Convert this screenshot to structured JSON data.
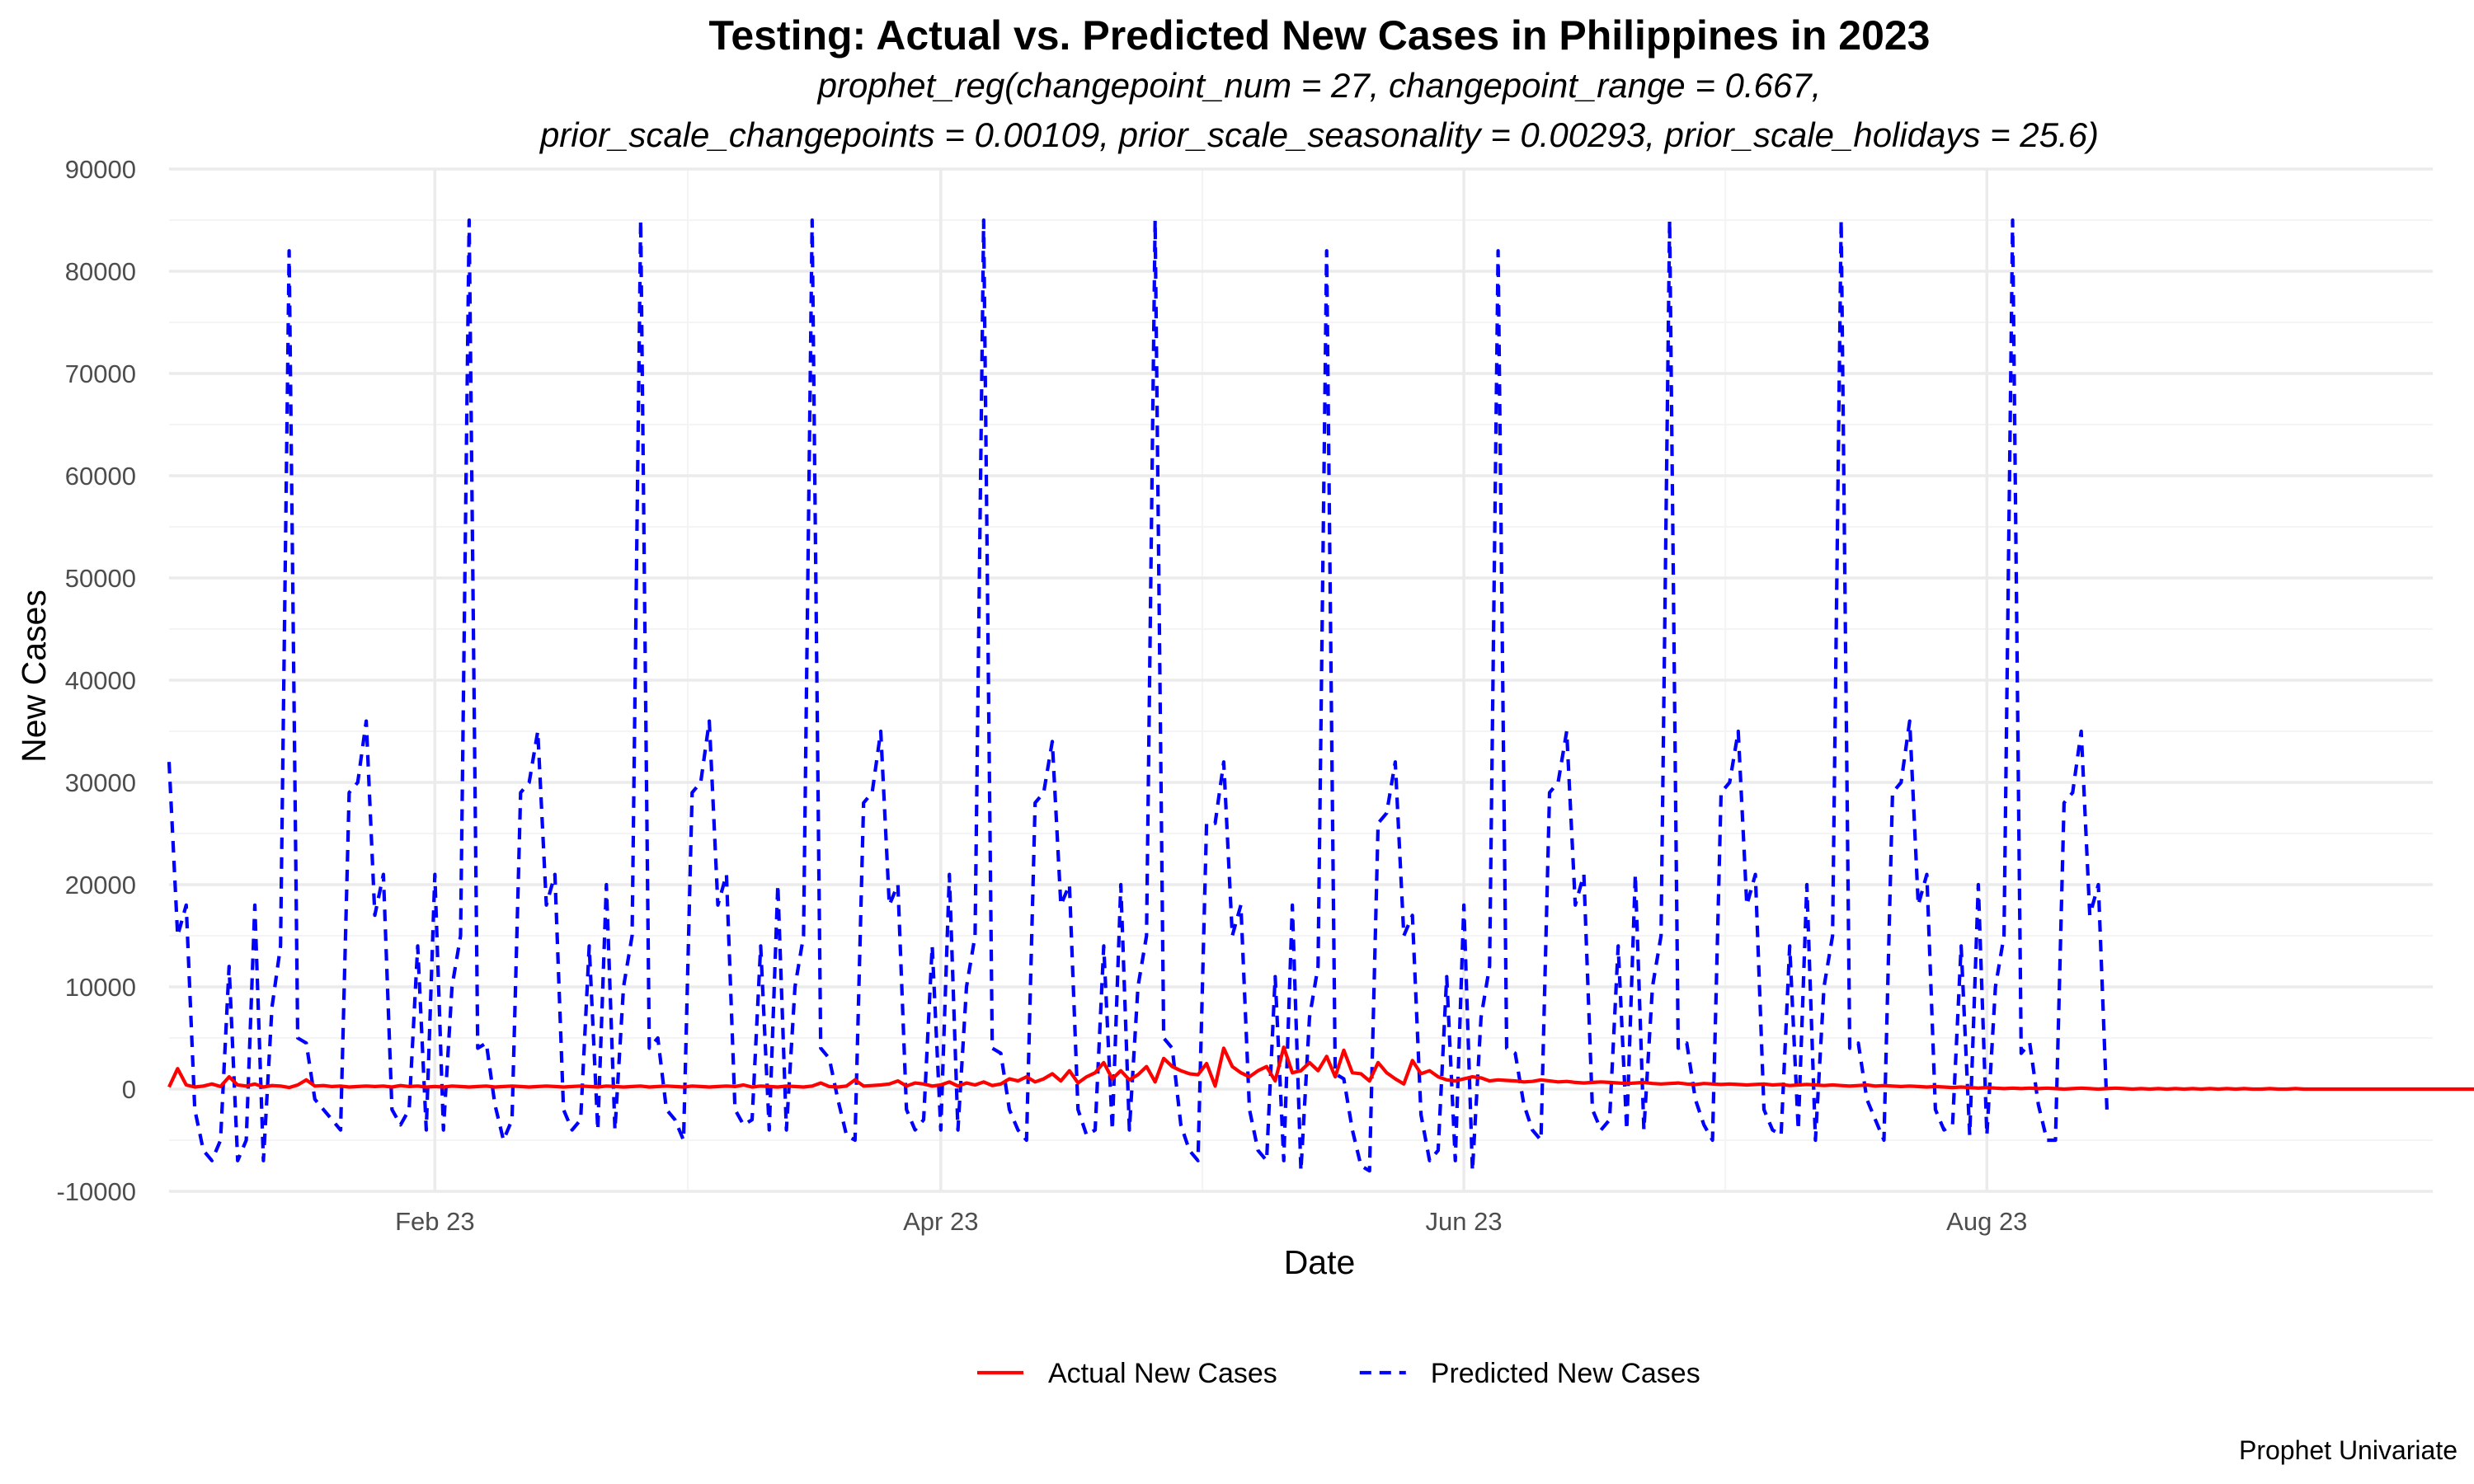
{
  "chart_data": {
    "type": "line",
    "title": "Testing: Actual vs. Predicted New Cases in Philippines in 2023",
    "subtitle_lines": [
      "prophet_reg(changepoint_num = 27, changepoint_range = 0.667,",
      "prior_scale_changepoints = 0.00109, prior_scale_seasonality = 0.00293, prior_scale_holidays = 25.6)"
    ],
    "xlabel": "Date",
    "ylabel": "New Cases",
    "caption": "Prophet Univariate",
    "x_range": [
      "2023-01-01",
      "2023-09-22"
    ],
    "ylim": [
      -10000,
      90000
    ],
    "y_ticks": [
      -10000,
      0,
      10000,
      20000,
      30000,
      40000,
      50000,
      60000,
      70000,
      80000,
      90000
    ],
    "x_ticks": [
      {
        "date": "2023-02-01",
        "label": "Feb 23"
      },
      {
        "date": "2023-04-01",
        "label": "Apr 23"
      },
      {
        "date": "2023-06-01",
        "label": "Jun 23"
      },
      {
        "date": "2023-08-01",
        "label": "Aug 23"
      }
    ],
    "grid": true,
    "legend_position": "bottom",
    "series": [
      {
        "name": "Actual New Cases",
        "color": "#ff0000",
        "dash": "solid",
        "start_date": "2023-01-01",
        "interval_days": 1,
        "values": [
          200,
          2000,
          400,
          200,
          300,
          500,
          250,
          1200,
          400,
          300,
          500,
          200,
          350,
          300,
          150,
          400,
          900,
          300,
          350,
          250,
          300,
          200,
          250,
          300,
          250,
          300,
          200,
          350,
          250,
          300,
          200,
          250,
          200,
          300,
          250,
          200,
          250,
          300,
          200,
          250,
          300,
          250,
          200,
          250,
          300,
          250,
          200,
          250,
          300,
          250,
          200,
          300,
          250,
          200,
          250,
          300,
          200,
          250,
          300,
          250,
          200,
          300,
          250,
          200,
          250,
          300,
          250,
          400,
          200,
          300,
          250,
          200,
          300,
          250,
          200,
          300,
          600,
          250,
          200,
          300,
          900,
          300,
          350,
          400,
          500,
          800,
          300,
          600,
          500,
          300,
          400,
          700,
          300,
          600,
          400,
          700,
          350,
          500,
          1000,
          800,
          1200,
          700,
          1000,
          1500,
          800,
          1800,
          600,
          1200,
          1600,
          2600,
          1000,
          1800,
          900,
          1400,
          2200,
          700,
          3000,
          2200,
          1800,
          1500,
          1400,
          2500,
          300,
          4000,
          2200,
          1600,
          1200,
          1800,
          2200,
          800,
          4100,
          1600,
          1800,
          2600,
          1800,
          3200,
          1200,
          3800,
          1600,
          1500,
          800,
          2600,
          1600,
          1000,
          500,
          2800,
          1500,
          1800,
          1200,
          900,
          800,
          1000,
          1200,
          1100,
          800,
          900,
          850,
          800,
          700,
          750,
          900,
          800,
          700,
          750,
          650,
          600,
          650,
          700,
          650,
          600,
          550,
          600,
          650,
          550,
          500,
          550,
          600,
          500,
          450,
          550,
          500,
          450,
          500,
          450,
          400,
          450,
          500,
          400,
          450,
          350,
          400,
          450,
          400,
          350,
          400,
          350,
          300,
          350,
          400,
          300,
          350,
          300,
          250,
          300,
          250,
          200,
          250,
          200,
          150,
          200,
          150,
          100,
          150,
          100,
          50,
          100,
          50,
          100,
          50,
          100,
          50,
          0,
          50,
          100,
          50,
          0,
          50,
          100,
          50,
          0,
          50,
          0,
          50,
          0,
          50,
          0,
          50,
          0,
          50,
          0,
          50,
          0,
          50,
          0,
          0,
          50,
          0,
          0,
          50,
          0,
          0,
          0,
          0,
          0,
          0,
          0,
          0,
          0,
          0,
          0,
          0,
          0,
          0,
          0,
          0,
          0,
          0,
          0,
          0,
          0,
          0,
          0,
          0,
          0,
          0,
          0
        ]
      },
      {
        "name": "Predicted New Cases",
        "color": "#0000ff",
        "dash": "dashed",
        "start_date": "2023-01-01",
        "interval_days": 1,
        "values": [
          32000,
          15000,
          18000,
          -2000,
          -6000,
          -7000,
          -5000,
          12000,
          -7000,
          -5000,
          18000,
          -7000,
          8000,
          14000,
          82000,
          5000,
          4500,
          -1000,
          -2000,
          -3000,
          -4000,
          29000,
          30000,
          36000,
          17000,
          21000,
          -2000,
          -3500,
          -2000,
          14000,
          -4000,
          21000,
          -4000,
          10000,
          15000,
          85000,
          4000,
          4500,
          -1500,
          -5000,
          -3000,
          29000,
          30000,
          35000,
          18000,
          21000,
          -2000,
          -4000,
          -3000,
          14000,
          -4000,
          20000,
          -4000,
          10000,
          15000,
          85000,
          4000,
          5000,
          -2000,
          -3000,
          -5000,
          29000,
          30000,
          36000,
          18000,
          21000,
          -2000,
          -3500,
          -3000,
          14000,
          -4000,
          20000,
          -4000,
          10000,
          15000,
          85000,
          4000,
          3000,
          -1000,
          -4500,
          -5000,
          28000,
          29000,
          35000,
          18000,
          20000,
          -2000,
          -4000,
          -3000,
          14000,
          -4000,
          21000,
          -4000,
          10000,
          15000,
          85000,
          4000,
          3500,
          -2000,
          -4000,
          -5000,
          28000,
          29000,
          34000,
          18000,
          20000,
          -2000,
          -4500,
          -4000,
          14000,
          -4000,
          20000,
          -4000,
          10000,
          15000,
          85000,
          5000,
          4000,
          -3500,
          -6000,
          -7000,
          26000,
          26000,
          32000,
          15000,
          18000,
          -2000,
          -6000,
          -7000,
          11000,
          -7000,
          18000,
          -8000,
          7000,
          12000,
          82000,
          1500,
          1000,
          -4000,
          -7500,
          -8000,
          26000,
          27000,
          32000,
          15000,
          17000,
          -2500,
          -7000,
          -6000,
          11000,
          -7000,
          18000,
          -8000,
          7000,
          12000,
          82000,
          4000,
          3500,
          -1500,
          -4000,
          -5000,
          29000,
          30000,
          35000,
          18000,
          21000,
          -2000,
          -4000,
          -3000,
          14000,
          -4000,
          21000,
          -4000,
          10000,
          15000,
          85000,
          4000,
          4500,
          -1000,
          -3500,
          -5000,
          29000,
          30000,
          35000,
          18000,
          21000,
          -2000,
          -4000,
          -4500,
          14000,
          -4000,
          20000,
          -5000,
          10000,
          15000,
          85000,
          4000,
          4500,
          -1000,
          -3000,
          -5000,
          29000,
          30000,
          36000,
          18000,
          21000,
          -2000,
          -4000,
          -3500,
          14000,
          -4500,
          20000,
          -4500,
          10000,
          15000,
          85000,
          3500,
          4500,
          -1500,
          -5000,
          -5000,
          28000,
          29000,
          35000,
          17000,
          20000,
          -2000
        ]
      }
    ]
  }
}
